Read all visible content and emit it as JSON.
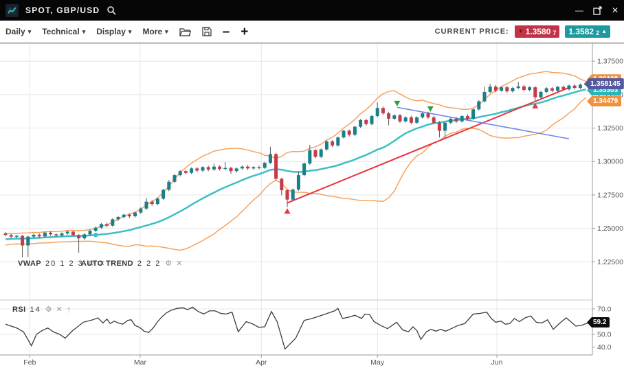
{
  "window": {
    "title": "SPOT, GBP/USD",
    "controls": {
      "minimize": "—",
      "close": "✕"
    }
  },
  "toolbar": {
    "caret": "▾",
    "menus": [
      {
        "label": "Daily"
      },
      {
        "label": "Technical"
      },
      {
        "label": "Display"
      },
      {
        "label": "More"
      }
    ],
    "zoom_out": "–",
    "zoom_in": "+"
  },
  "current_price": {
    "label": "CURRENT PRICE:",
    "bid": {
      "value": "1.3580",
      "sub": "7",
      "arrow": "▼",
      "color": "#c2334a"
    },
    "ask": {
      "value": "1.3582",
      "sub": "2",
      "arrow": "▲",
      "color": "#1d9aa0"
    }
  },
  "icons": {
    "gear": "⚙",
    "close": "✕",
    "arrow_up": "↑"
  },
  "indicator_labels": {
    "vwap": {
      "name": "VWAP",
      "params": "20 1 2 3"
    },
    "auto_trend": {
      "name": "AUTO TREND",
      "params": "2 2 2"
    },
    "rsi": {
      "name": "RSI",
      "params": "14"
    }
  },
  "badges": {
    "upper_band": {
      "text": "1.36108",
      "price": 1.36108,
      "color": "#f0923c"
    },
    "last": {
      "text": "1.358145",
      "price": 1.358145,
      "color": "#55589d"
    },
    "vwap": {
      "text": "1.35303",
      "price": 1.35303,
      "color": "#2ab4bc"
    },
    "lower_band": {
      "text": "1.34479",
      "price": 1.34479,
      "color": "#f0923c"
    },
    "rsi": {
      "text": "59.2",
      "value": 59.2,
      "color": "#0d0d0d"
    }
  },
  "axis": {
    "price_ticks": [
      1.375,
      1.35,
      1.325,
      1.3,
      1.275,
      1.25,
      1.225
    ],
    "rsi_ticks": [
      70,
      50,
      40
    ],
    "months": [
      {
        "label": "Feb",
        "i": 4.3
      },
      {
        "label": "Mar",
        "i": 23.9
      },
      {
        "label": "Apr",
        "i": 45.4
      },
      {
        "label": "May",
        "i": 66.0
      },
      {
        "label": "Jun",
        "i": 87.2
      }
    ]
  },
  "chart_data": {
    "type": "candlestick",
    "symbol": "GBP/USD",
    "timeframe": "Daily",
    "x_range_months": [
      "Feb",
      "Jun"
    ],
    "price_range_visible": [
      1.2,
      1.3885
    ],
    "rsi_range_visible": [
      34,
      77
    ],
    "colors": {
      "bull": "#17808b",
      "bear": "#c63b4a",
      "wick": "#555555",
      "band": "#f5a25d",
      "mid": "#3bbfc4",
      "grid": "#e7e7e7",
      "axis": "#9a9a9a",
      "sep": "#c9c9c9",
      "rsi_line": "#3a3a3a",
      "rsi_fill": "#9a9a9a",
      "label": "#555555",
      "up_marker": "#e63946",
      "down_marker": "#2e9e3e",
      "trend_support": "#e8323e",
      "trend_resistance": "#6f86e8"
    },
    "indicators": {
      "bollinger_period": 20,
      "bollinger_stdev": 2,
      "vwap_period": 20,
      "rsi_period": 14
    },
    "pre_closes": [
      1.238,
      1.2392,
      1.2386,
      1.2398,
      1.2404,
      1.2396,
      1.2408,
      1.2412,
      1.2406,
      1.2418,
      1.2422,
      1.2416,
      1.2428,
      1.2432,
      1.2426,
      1.2438,
      1.2444,
      1.2448,
      1.2456
    ],
    "candles": [
      [
        1.2462,
        1.2472,
        1.244,
        1.245
      ],
      [
        1.245,
        1.2458,
        1.2426,
        1.2438
      ],
      [
        1.2438,
        1.2452,
        1.2428,
        1.2444
      ],
      [
        1.2444,
        1.245,
        1.2282,
        1.2372
      ],
      [
        1.2372,
        1.2446,
        1.2285,
        1.2438
      ],
      [
        1.2438,
        1.2462,
        1.2428,
        1.2452
      ],
      [
        1.2452,
        1.2462,
        1.2428,
        1.244
      ],
      [
        1.244,
        1.2476,
        1.2431,
        1.2468
      ],
      [
        1.2468,
        1.2477,
        1.2444,
        1.2455
      ],
      [
        1.2455,
        1.2464,
        1.2436,
        1.2447
      ],
      [
        1.2447,
        1.247,
        1.2438,
        1.2462
      ],
      [
        1.2462,
        1.2484,
        1.2452,
        1.2475
      ],
      [
        1.2475,
        1.2482,
        1.2439,
        1.245
      ],
      [
        1.245,
        1.2457,
        1.2318,
        1.2425
      ],
      [
        1.2425,
        1.2463,
        1.2414,
        1.2455
      ],
      [
        1.2455,
        1.249,
        1.2446,
        1.2482
      ],
      [
        1.2482,
        1.2513,
        1.2473,
        1.2505
      ],
      [
        1.2505,
        1.254,
        1.2496,
        1.2532
      ],
      [
        1.2532,
        1.2542,
        1.2507,
        1.252
      ],
      [
        1.252,
        1.2575,
        1.2511,
        1.2568
      ],
      [
        1.2568,
        1.2593,
        1.2556,
        1.2585
      ],
      [
        1.2585,
        1.261,
        1.2574,
        1.2602
      ],
      [
        1.2602,
        1.2612,
        1.2577,
        1.259
      ],
      [
        1.259,
        1.2626,
        1.2581,
        1.2618
      ],
      [
        1.2618,
        1.2656,
        1.2608,
        1.2648
      ],
      [
        1.2648,
        1.2725,
        1.2638,
        1.27
      ],
      [
        1.27,
        1.2711,
        1.2668,
        1.2682
      ],
      [
        1.2682,
        1.273,
        1.2673,
        1.2722
      ],
      [
        1.2722,
        1.2796,
        1.2712,
        1.2788
      ],
      [
        1.2788,
        1.2862,
        1.2778,
        1.2848
      ],
      [
        1.2848,
        1.2906,
        1.2838,
        1.2898
      ],
      [
        1.2898,
        1.2936,
        1.2888,
        1.2928
      ],
      [
        1.2928,
        1.2938,
        1.2902,
        1.2915
      ],
      [
        1.2915,
        1.2956,
        1.2906,
        1.2948
      ],
      [
        1.2948,
        1.2958,
        1.292,
        1.2932
      ],
      [
        1.2932,
        1.2966,
        1.2923,
        1.2958
      ],
      [
        1.2958,
        1.2968,
        1.2928,
        1.294
      ],
      [
        1.294,
        1.2985,
        1.2931,
        1.2962
      ],
      [
        1.2962,
        1.2972,
        1.2932,
        1.2944
      ],
      [
        1.2944,
        1.2996,
        1.2935,
        1.2952
      ],
      [
        1.2952,
        1.2961,
        1.2908,
        1.2928
      ],
      [
        1.2928,
        1.2956,
        1.2917,
        1.2948
      ],
      [
        1.2948,
        1.297,
        1.2939,
        1.2962
      ],
      [
        1.2962,
        1.2973,
        1.2936,
        1.2948
      ],
      [
        1.2948,
        1.2966,
        1.2939,
        1.2958
      ],
      [
        1.2958,
        1.2969,
        1.2941,
        1.2952
      ],
      [
        1.2952,
        1.2998,
        1.2943,
        1.299
      ],
      [
        1.299,
        1.311,
        1.2981,
        1.3055
      ],
      [
        1.3055,
        1.3065,
        1.2858,
        1.287
      ],
      [
        1.287,
        1.2879,
        1.2748,
        1.2785
      ],
      [
        1.2785,
        1.2794,
        1.2658,
        1.2715
      ],
      [
        1.2715,
        1.2798,
        1.2706,
        1.279
      ],
      [
        1.279,
        1.2925,
        1.2781,
        1.2898
      ],
      [
        1.2898,
        1.2993,
        1.2889,
        1.2985
      ],
      [
        1.2985,
        1.3125,
        1.2976,
        1.3085
      ],
      [
        1.3085,
        1.3095,
        1.3024,
        1.3035
      ],
      [
        1.3035,
        1.3098,
        1.3026,
        1.309
      ],
      [
        1.309,
        1.3158,
        1.3081,
        1.315
      ],
      [
        1.315,
        1.316,
        1.3108,
        1.312
      ],
      [
        1.312,
        1.3188,
        1.3111,
        1.318
      ],
      [
        1.318,
        1.3238,
        1.3171,
        1.323
      ],
      [
        1.323,
        1.324,
        1.3188,
        1.32
      ],
      [
        1.32,
        1.3268,
        1.3191,
        1.326
      ],
      [
        1.326,
        1.3318,
        1.3251,
        1.331
      ],
      [
        1.331,
        1.332,
        1.3268,
        1.328
      ],
      [
        1.328,
        1.3348,
        1.3271,
        1.334
      ],
      [
        1.334,
        1.3442,
        1.3331,
        1.34
      ],
      [
        1.34,
        1.3412,
        1.3348,
        1.336
      ],
      [
        1.336,
        1.3372,
        1.327,
        1.332
      ],
      [
        1.332,
        1.3353,
        1.3311,
        1.3345
      ],
      [
        1.3345,
        1.3356,
        1.3288,
        1.33
      ],
      [
        1.33,
        1.3338,
        1.3291,
        1.333
      ],
      [
        1.333,
        1.3342,
        1.3278,
        1.329
      ],
      [
        1.329,
        1.3338,
        1.3281,
        1.333
      ],
      [
        1.333,
        1.3368,
        1.3321,
        1.336
      ],
      [
        1.336,
        1.3372,
        1.3318,
        1.333
      ],
      [
        1.333,
        1.3342,
        1.3278,
        1.329
      ],
      [
        1.329,
        1.3302,
        1.318,
        1.323
      ],
      [
        1.323,
        1.3298,
        1.3172,
        1.329
      ],
      [
        1.329,
        1.3328,
        1.3281,
        1.332
      ],
      [
        1.332,
        1.3332,
        1.3288,
        1.33
      ],
      [
        1.33,
        1.3348,
        1.3291,
        1.334
      ],
      [
        1.334,
        1.3352,
        1.3308,
        1.332
      ],
      [
        1.332,
        1.3398,
        1.3311,
        1.339
      ],
      [
        1.339,
        1.3458,
        1.3381,
        1.345
      ],
      [
        1.345,
        1.356,
        1.3441,
        1.352
      ],
      [
        1.352,
        1.3582,
        1.3511,
        1.356
      ],
      [
        1.356,
        1.3572,
        1.3518,
        1.353
      ],
      [
        1.353,
        1.3563,
        1.3521,
        1.3555
      ],
      [
        1.3555,
        1.3566,
        1.3513,
        1.3525
      ],
      [
        1.3525,
        1.3558,
        1.3516,
        1.355
      ],
      [
        1.355,
        1.3595,
        1.3541,
        1.3562
      ],
      [
        1.3562,
        1.3573,
        1.3523,
        1.3535
      ],
      [
        1.3535,
        1.3563,
        1.3526,
        1.3555
      ],
      [
        1.3555,
        1.3564,
        1.3452,
        1.348
      ],
      [
        1.348,
        1.3528,
        1.3471,
        1.352
      ],
      [
        1.352,
        1.3556,
        1.3511,
        1.3548
      ],
      [
        1.3548,
        1.3558,
        1.3518,
        1.353
      ],
      [
        1.353,
        1.3566,
        1.3521,
        1.3558
      ],
      [
        1.3558,
        1.3569,
        1.3528,
        1.354
      ],
      [
        1.354,
        1.3576,
        1.3531,
        1.3568
      ],
      [
        1.3568,
        1.3579,
        1.3538,
        1.355
      ],
      [
        1.355,
        1.3583,
        1.3541,
        1.3575
      ],
      [
        1.3575,
        1.3592,
        1.3566,
        1.3581
      ]
    ],
    "trend_lines": [
      {
        "name": "support",
        "from_i": 50,
        "from_price": 1.269,
        "to_i": 100,
        "to_price": 1.3553
      },
      {
        "name": "resistance",
        "from_i": 69.5,
        "from_price": 1.3405,
        "to_i": 100,
        "to_price": 1.317
      }
    ],
    "markers": {
      "up": [
        {
          "i": 50,
          "price": 1.263
        },
        {
          "i": 94,
          "price": 1.3418
        }
      ],
      "down": [
        {
          "i": 69.5,
          "price": 1.3433
        },
        {
          "i": 75.4,
          "price": 1.3392
        }
      ]
    },
    "rsi_points": [
      [
        0,
        58
      ],
      [
        1,
        56.5
      ],
      [
        2,
        55
      ],
      [
        3.2,
        52
      ],
      [
        4.6,
        41
      ],
      [
        5.5,
        50
      ],
      [
        6.5,
        53
      ],
      [
        7.5,
        55
      ],
      [
        8.5,
        52
      ],
      [
        9.6,
        50
      ],
      [
        10.6,
        47
      ],
      [
        11.8,
        52.5
      ],
      [
        12.8,
        56
      ],
      [
        13.8,
        59.5
      ],
      [
        15.5,
        61.5
      ],
      [
        16.4,
        63
      ],
      [
        17.3,
        59
      ],
      [
        18,
        62
      ],
      [
        18.6,
        58.5
      ],
      [
        19.3,
        60.5
      ],
      [
        20,
        59
      ],
      [
        20.8,
        58
      ],
      [
        21.7,
        61
      ],
      [
        22.3,
        61.5
      ],
      [
        23,
        57
      ],
      [
        23.8,
        55.5
      ],
      [
        24.6,
        52.5
      ],
      [
        25.4,
        51.5
      ],
      [
        26.2,
        55
      ],
      [
        27,
        60
      ],
      [
        27.8,
        64
      ],
      [
        28.6,
        67
      ],
      [
        29.4,
        69
      ],
      [
        30.5,
        70.5
      ],
      [
        31.5,
        71
      ],
      [
        32.3,
        69.5
      ],
      [
        33.2,
        71.5
      ],
      [
        34.2,
        68
      ],
      [
        35.2,
        66
      ],
      [
        36.2,
        68.5
      ],
      [
        37.2,
        68.5
      ],
      [
        38.2,
        66.5
      ],
      [
        39.2,
        66
      ],
      [
        40.2,
        67.5
      ],
      [
        41.3,
        52
      ],
      [
        42.7,
        60
      ],
      [
        43.7,
        58.5
      ],
      [
        45,
        55.5
      ],
      [
        46,
        56
      ],
      [
        47.2,
        68
      ],
      [
        48.2,
        60
      ],
      [
        49.6,
        38.5
      ],
      [
        51.5,
        47
      ],
      [
        53,
        61
      ],
      [
        54.4,
        62.5
      ],
      [
        56.8,
        66
      ],
      [
        58.4,
        68.5
      ],
      [
        59,
        70.5
      ],
      [
        59.8,
        62.5
      ],
      [
        60.9,
        63.5
      ],
      [
        62,
        65
      ],
      [
        63.2,
        62.5
      ],
      [
        63.8,
        66
      ],
      [
        64.6,
        65.5
      ],
      [
        65.4,
        60
      ],
      [
        66.6,
        57
      ],
      [
        67.8,
        54.5
      ],
      [
        69.4,
        59.5
      ],
      [
        70.5,
        53.5
      ],
      [
        71.5,
        52
      ],
      [
        72.3,
        56
      ],
      [
        73,
        53
      ],
      [
        73.7,
        46
      ],
      [
        74.7,
        52
      ],
      [
        75.5,
        54
      ],
      [
        76.4,
        52.5
      ],
      [
        77.2,
        54
      ],
      [
        78.1,
        52.5
      ],
      [
        79.1,
        54.5
      ],
      [
        80.3,
        57
      ],
      [
        81.5,
        58.5
      ],
      [
        83,
        66
      ],
      [
        84.2,
        66.5
      ],
      [
        85.4,
        67.5
      ],
      [
        86.2,
        62.5
      ],
      [
        87,
        59.5
      ],
      [
        87.9,
        60.5
      ],
      [
        88.7,
        58
      ],
      [
        89.5,
        58.5
      ],
      [
        90.3,
        62.5
      ],
      [
        91.2,
        60
      ],
      [
        92.2,
        63
      ],
      [
        93.2,
        64.5
      ],
      [
        94.2,
        59.5
      ],
      [
        95.2,
        59
      ],
      [
        96.2,
        61.5
      ],
      [
        97.2,
        54
      ],
      [
        98.4,
        59
      ],
      [
        99.5,
        63
      ],
      [
        100.3,
        60
      ],
      [
        101.2,
        56.5
      ],
      [
        102.2,
        57
      ],
      [
        103,
        58.5
      ],
      [
        103.8,
        59.2
      ]
    ]
  }
}
